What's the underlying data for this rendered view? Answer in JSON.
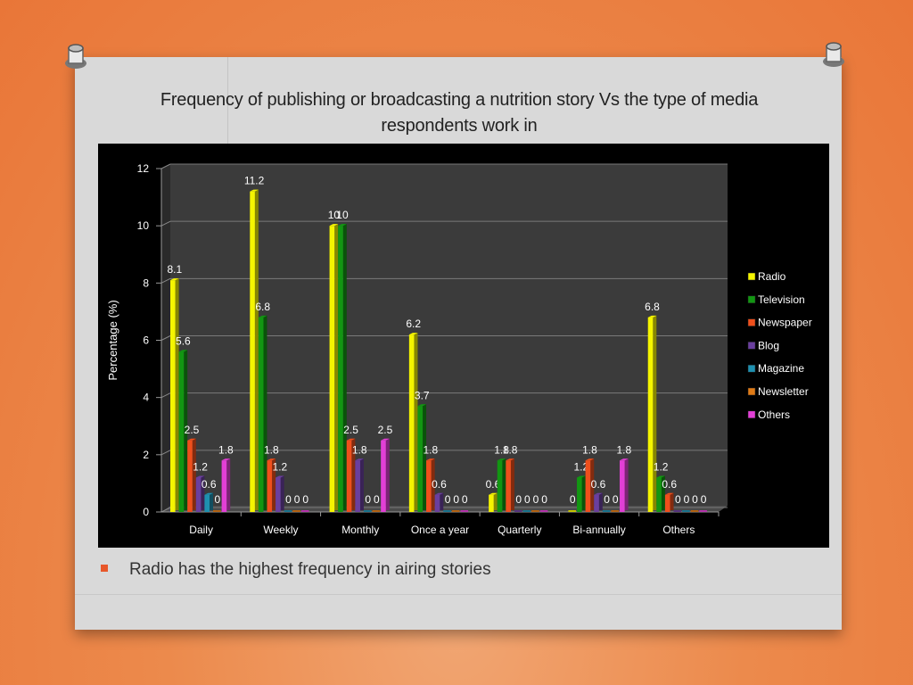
{
  "slide": {
    "title_line1": "Frequency of publishing or broadcasting a nutrition story Vs the type of media",
    "title_line2": "respondents work in",
    "bullet_text": "Radio has the highest frequency in airing  stories"
  },
  "colors": {
    "Radio": "#f5f500",
    "Television": "#129612",
    "Newspaper": "#ef4f1c",
    "Blog": "#6a3f9e",
    "Magazine": "#1e90b0",
    "Newsletter": "#e07b16",
    "Others": "#e23fd6"
  },
  "chart_data": {
    "type": "bar",
    "title": "",
    "xlabel": "",
    "ylabel": "Percentage (%)",
    "ylim": [
      0,
      12
    ],
    "yticks": [
      0,
      2,
      4,
      6,
      8,
      10,
      12
    ],
    "grid": true,
    "legend_position": "right",
    "categories": [
      "Daily",
      "Weekly",
      "Monthly",
      "Once a year",
      "Quarterly",
      "Bi-annually",
      "Others"
    ],
    "series": [
      {
        "name": "Radio",
        "values": [
          8.1,
          11.2,
          10,
          6.2,
          0.6,
          0,
          6.8
        ]
      },
      {
        "name": "Television",
        "values": [
          5.6,
          6.8,
          10,
          3.7,
          1.8,
          1.2,
          1.2
        ]
      },
      {
        "name": "Newspaper",
        "values": [
          2.5,
          1.8,
          2.5,
          1.8,
          1.8,
          1.8,
          0.6
        ]
      },
      {
        "name": "Blog",
        "values": [
          1.2,
          1.2,
          1.8,
          0.6,
          0,
          0.6,
          0
        ]
      },
      {
        "name": "Magazine",
        "values": [
          0.6,
          0,
          0,
          0,
          0,
          0,
          0
        ]
      },
      {
        "name": "Newsletter",
        "values": [
          0,
          0,
          0,
          0,
          0,
          0,
          0
        ]
      },
      {
        "name": "Others",
        "values": [
          1.8,
          0,
          2.5,
          0,
          0,
          1.8,
          0
        ]
      }
    ]
  }
}
